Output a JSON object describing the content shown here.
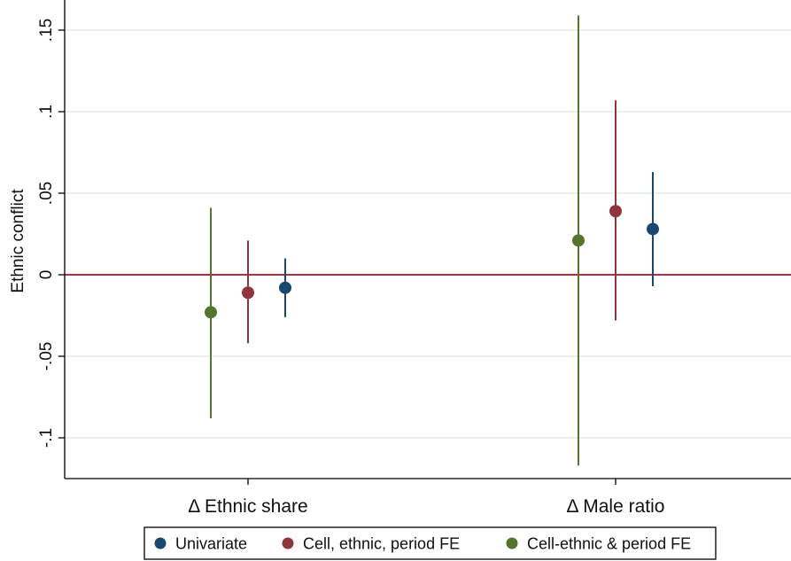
{
  "chart_data": {
    "type": "scatter",
    "subtype": "coefficient-plot-with-confidence-intervals",
    "title": "",
    "xlabel": "",
    "ylabel": "Ethnic conflict",
    "categories": [
      "Δ Ethnic share",
      "Δ Male ratio"
    ],
    "ylim": [
      -0.125,
      0.165
    ],
    "yticks": [
      {
        "value": 0.15,
        "label": ".15"
      },
      {
        "value": 0.1,
        "label": ".1"
      },
      {
        "value": 0.05,
        "label": ".05"
      },
      {
        "value": 0,
        "label": "0"
      },
      {
        "value": -0.05,
        "label": "-.05"
      },
      {
        "value": -0.1,
        "label": "-.1"
      }
    ],
    "grid": true,
    "reference_line": {
      "value": 0,
      "color": "#a0182e"
    },
    "legend_position": "bottom",
    "series": [
      {
        "name": "Univariate",
        "color": "#1a476f",
        "estimates": [
          -0.008,
          0.028
        ],
        "ci_low": [
          -0.026,
          -0.007
        ],
        "ci_high": [
          0.01,
          0.063
        ]
      },
      {
        "name": "Cell, ethnic, period FE",
        "color": "#90353b",
        "estimates": [
          -0.011,
          0.039
        ],
        "ci_low": [
          -0.042,
          -0.028
        ],
        "ci_high": [
          0.021,
          0.107
        ]
      },
      {
        "name": "Cell-ethnic & period FE",
        "color": "#55752f",
        "estimates": [
          -0.023,
          0.021
        ],
        "ci_low": [
          -0.088,
          -0.117
        ],
        "ci_high": [
          0.041,
          0.159
        ]
      }
    ]
  }
}
